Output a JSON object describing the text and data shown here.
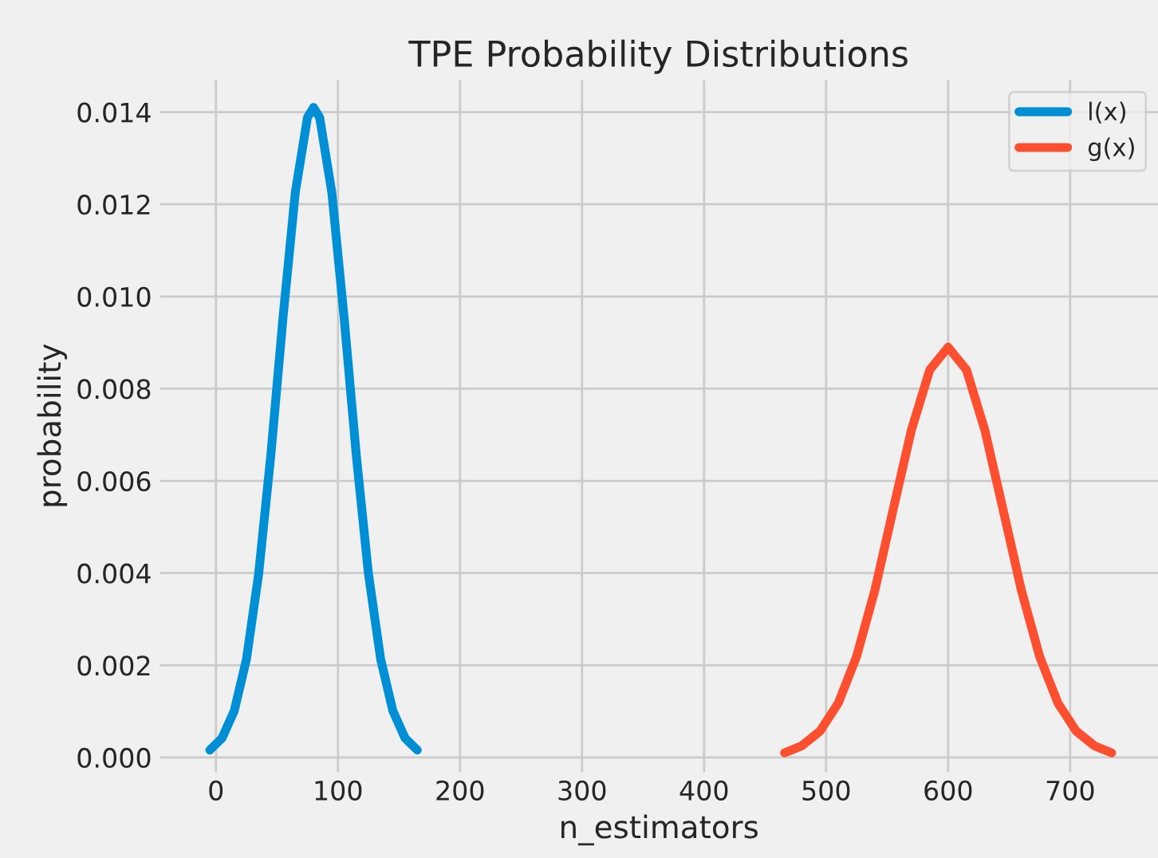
{
  "chart_data": {
    "type": "line",
    "title": "TPE Probability Distributions",
    "xlabel": "n_estimators",
    "ylabel": "probability",
    "xlim": [
      -46,
      772
    ],
    "ylim": [
      -0.00032,
      0.0147
    ],
    "xticks": [
      0,
      100,
      200,
      300,
      400,
      500,
      600,
      700
    ],
    "yticks": [
      {
        "value": 0,
        "label": "0.000"
      },
      {
        "value": 0.002,
        "label": "0.002"
      },
      {
        "value": 0.004,
        "label": "0.004"
      },
      {
        "value": 0.006,
        "label": "0.006"
      },
      {
        "value": 0.008,
        "label": "0.008"
      },
      {
        "value": 0.01,
        "label": "0.010"
      },
      {
        "value": 0.012,
        "label": "0.012"
      },
      {
        "value": 0.014,
        "label": "0.014"
      }
    ],
    "grid": true,
    "legend": "top right",
    "line_style": "solid",
    "marker": "none",
    "series": [
      {
        "name": "l(x)",
        "color": "#008fd5",
        "x": [
          -5,
          5,
          15,
          25,
          35,
          45,
          55,
          65,
          75,
          80,
          85,
          95,
          105,
          115,
          125,
          135,
          145,
          155,
          165
        ],
        "values": [
          0.00016,
          0.00042,
          0.00101,
          0.00213,
          0.00398,
          0.00656,
          0.00955,
          0.01225,
          0.01388,
          0.0141,
          0.01388,
          0.01225,
          0.00955,
          0.00656,
          0.00398,
          0.00213,
          0.00101,
          0.00042,
          0.00016
        ]
      },
      {
        "name": "g(x)",
        "color": "#fc4f30",
        "x": [
          466,
          480,
          495,
          510,
          525,
          540,
          555,
          570,
          585,
          600,
          615,
          630,
          645,
          660,
          675,
          690,
          705,
          720,
          734
        ],
        "values": [
          0.0001,
          0.00025,
          0.00057,
          0.00118,
          0.00219,
          0.00363,
          0.00538,
          0.00711,
          0.00841,
          0.0089,
          0.00841,
          0.00711,
          0.00538,
          0.00363,
          0.00219,
          0.00118,
          0.00057,
          0.00025,
          0.0001
        ]
      }
    ]
  }
}
